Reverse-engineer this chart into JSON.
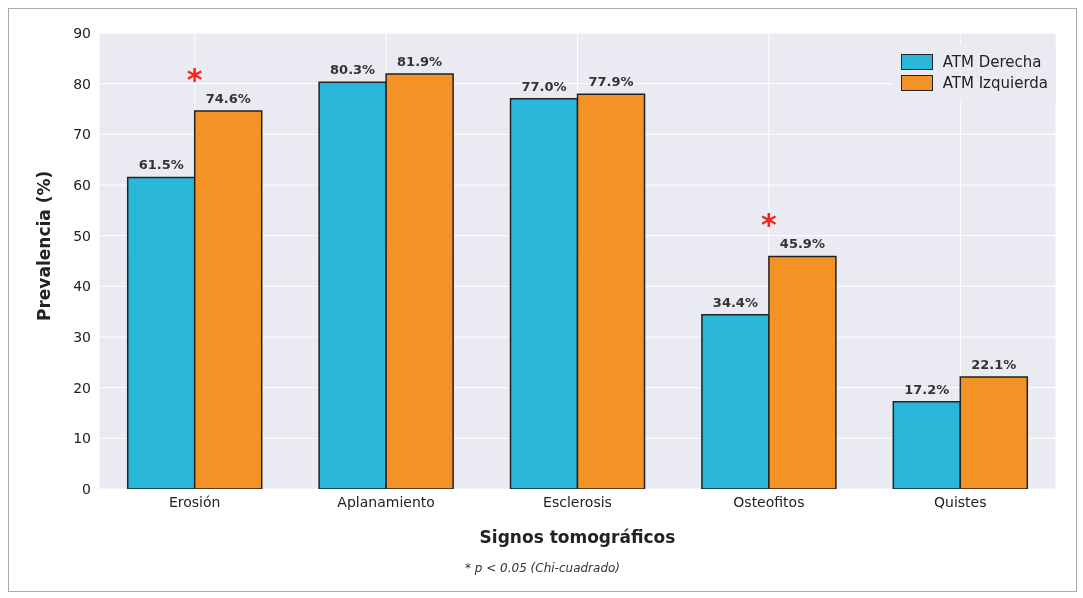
{
  "chart_data": {
    "type": "bar",
    "xlabel": "Signos tomográficos",
    "ylabel": "Prevalencia (%)",
    "categories": [
      "Erosión",
      "Aplanamiento",
      "Esclerosis",
      "Osteofitos",
      "Quistes"
    ],
    "series": [
      {
        "name": "ATM Derecha",
        "color": "#29b6d8",
        "values": [
          61.5,
          80.3,
          77.0,
          34.4,
          17.2
        ],
        "value_labels": [
          "61.5%",
          "80.3%",
          "77.0%",
          "34.4%",
          "17.2%"
        ]
      },
      {
        "name": "ATM Izquierda",
        "color": "#f39325",
        "values": [
          74.6,
          81.9,
          77.9,
          45.9,
          22.1
        ],
        "value_labels": [
          "74.6%",
          "81.9%",
          "77.9%",
          "45.9%",
          "22.1%"
        ]
      }
    ],
    "ylim": [
      0,
      90
    ],
    "yticks": [
      0,
      10,
      20,
      30,
      40,
      50,
      60,
      70,
      80,
      90
    ],
    "grid": true,
    "legend": "top right",
    "annotations": [
      {
        "text": "*",
        "x": "Erosión",
        "y": 74.6
      },
      {
        "text": "*",
        "x": "Osteofitos",
        "y": 45.9
      },
      "* p < 0.05 (Chi-cuadrado)"
    ]
  }
}
